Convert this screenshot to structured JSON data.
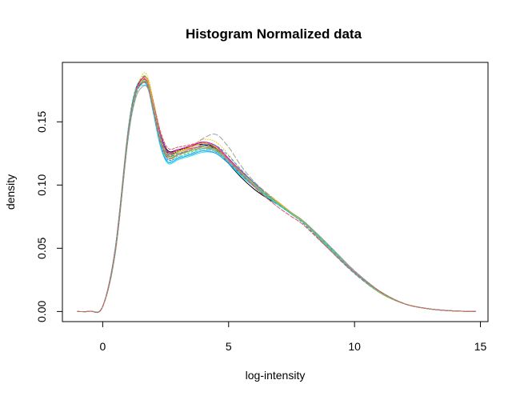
{
  "chart_data": {
    "type": "line",
    "title": "Histogram Normalized data",
    "xlabel": "log-intensity",
    "ylabel": "density",
    "xlim": [
      -1.6,
      15.3
    ],
    "ylim": [
      -0.008,
      0.197
    ],
    "xticks": [
      0,
      5,
      10,
      15
    ],
    "yticks": [
      0.0,
      0.05,
      0.1,
      0.15
    ],
    "xtick_labels": [
      "0",
      "5",
      "10",
      "15"
    ],
    "ytick_labels": [
      "0.00",
      "0.05",
      "0.10",
      "0.15"
    ],
    "grid": false,
    "legend": "none",
    "x": [
      -1.0,
      -0.5,
      0.0,
      0.5,
      1.0,
      1.3,
      1.6,
      1.8,
      2.0,
      2.3,
      2.6,
      3.0,
      3.5,
      4.0,
      4.5,
      5.0,
      5.5,
      6.0,
      6.5,
      7.0,
      7.5,
      8.0,
      9.0,
      10.0,
      11.0,
      12.0,
      13.0,
      14.0,
      14.8
    ],
    "series": [
      {
        "color": "#000000",
        "dash": "",
        "values": [
          0.0,
          0.0002,
          0.004,
          0.048,
          0.14,
          0.172,
          0.181,
          0.178,
          0.164,
          0.138,
          0.125,
          0.127,
          0.131,
          0.132,
          0.128,
          0.117,
          0.106,
          0.097,
          0.09,
          0.084,
          0.077,
          0.07,
          0.051,
          0.032,
          0.016,
          0.006,
          0.002,
          0.0004,
          0.0001
        ]
      },
      {
        "color": "#000000",
        "dash": "",
        "values": [
          0.0,
          0.0002,
          0.004,
          0.05,
          0.141,
          0.175,
          0.184,
          0.18,
          0.166,
          0.14,
          0.127,
          0.128,
          0.13,
          0.133,
          0.129,
          0.12,
          0.108,
          0.1,
          0.092,
          0.085,
          0.078,
          0.071,
          0.052,
          0.032,
          0.016,
          0.006,
          0.002,
          0.0004,
          0.0001
        ]
      },
      {
        "color": "#DF536B",
        "dash": "3,2",
        "values": [
          0.0,
          0.0002,
          0.004,
          0.049,
          0.138,
          0.171,
          0.183,
          0.181,
          0.167,
          0.142,
          0.129,
          0.13,
          0.132,
          0.134,
          0.13,
          0.12,
          0.11,
          0.101,
          0.093,
          0.085,
          0.078,
          0.07,
          0.05,
          0.031,
          0.015,
          0.006,
          0.002,
          0.0004,
          0.0001
        ]
      },
      {
        "color": "#61D04F",
        "dash": "5,3",
        "values": [
          0.0,
          0.0002,
          0.004,
          0.047,
          0.139,
          0.174,
          0.186,
          0.182,
          0.164,
          0.136,
          0.123,
          0.125,
          0.128,
          0.131,
          0.128,
          0.119,
          0.109,
          0.1,
          0.092,
          0.085,
          0.078,
          0.071,
          0.052,
          0.032,
          0.016,
          0.006,
          0.002,
          0.0004,
          0.0001
        ]
      },
      {
        "color": "#2297E6",
        "dash": "2,2",
        "values": [
          0.0,
          0.0002,
          0.004,
          0.048,
          0.137,
          0.172,
          0.182,
          0.179,
          0.161,
          0.133,
          0.12,
          0.122,
          0.125,
          0.128,
          0.126,
          0.118,
          0.108,
          0.099,
          0.091,
          0.084,
          0.077,
          0.07,
          0.051,
          0.032,
          0.016,
          0.006,
          0.002,
          0.0004,
          0.0001
        ]
      },
      {
        "color": "#28E2E5",
        "dash": "",
        "values": [
          0.0,
          0.0002,
          0.004,
          0.05,
          0.142,
          0.173,
          0.179,
          0.176,
          0.158,
          0.13,
          0.117,
          0.12,
          0.123,
          0.126,
          0.125,
          0.117,
          0.107,
          0.099,
          0.091,
          0.084,
          0.077,
          0.07,
          0.051,
          0.032,
          0.016,
          0.006,
          0.002,
          0.0004,
          0.0001
        ]
      },
      {
        "color": "#CD0BBC",
        "dash": "4,2",
        "values": [
          0.0,
          0.0002,
          0.004,
          0.049,
          0.14,
          0.174,
          0.184,
          0.18,
          0.165,
          0.139,
          0.126,
          0.128,
          0.131,
          0.133,
          0.13,
          0.121,
          0.11,
          0.101,
          0.093,
          0.086,
          0.078,
          0.07,
          0.05,
          0.031,
          0.015,
          0.006,
          0.002,
          0.0004,
          0.0001
        ]
      },
      {
        "color": "#F5C710",
        "dash": "1,2",
        "values": [
          0.0,
          0.0002,
          0.004,
          0.046,
          0.136,
          0.172,
          0.188,
          0.185,
          0.168,
          0.14,
          0.126,
          0.127,
          0.131,
          0.136,
          0.134,
          0.124,
          0.112,
          0.102,
          0.094,
          0.086,
          0.078,
          0.07,
          0.05,
          0.031,
          0.015,
          0.006,
          0.002,
          0.0004,
          0.0001
        ]
      },
      {
        "color": "#9E9E9E",
        "dash": "6,3",
        "values": [
          0.0,
          0.0002,
          0.004,
          0.047,
          0.137,
          0.171,
          0.185,
          0.183,
          0.166,
          0.139,
          0.125,
          0.126,
          0.13,
          0.137,
          0.14,
          0.13,
          0.115,
          0.103,
          0.094,
          0.086,
          0.078,
          0.07,
          0.049,
          0.03,
          0.015,
          0.006,
          0.002,
          0.0004,
          0.0001
        ]
      },
      {
        "color": "#DF536B",
        "dash": "",
        "values": [
          0.0,
          0.0002,
          0.004,
          0.048,
          0.139,
          0.173,
          0.183,
          0.18,
          0.163,
          0.136,
          0.123,
          0.126,
          0.129,
          0.13,
          0.127,
          0.118,
          0.108,
          0.1,
          0.092,
          0.085,
          0.077,
          0.07,
          0.051,
          0.032,
          0.016,
          0.006,
          0.002,
          0.0004,
          0.0001
        ]
      },
      {
        "color": "#61D04F",
        "dash": "2,3",
        "values": [
          0.0,
          0.0002,
          0.004,
          0.05,
          0.143,
          0.176,
          0.182,
          0.177,
          0.16,
          0.134,
          0.121,
          0.123,
          0.126,
          0.129,
          0.127,
          0.119,
          0.109,
          0.1,
          0.092,
          0.085,
          0.078,
          0.071,
          0.052,
          0.032,
          0.016,
          0.006,
          0.002,
          0.0004,
          0.0001
        ]
      },
      {
        "color": "#2297E6",
        "dash": "",
        "values": [
          0.0,
          0.0002,
          0.004,
          0.049,
          0.141,
          0.174,
          0.181,
          0.177,
          0.159,
          0.131,
          0.118,
          0.121,
          0.124,
          0.127,
          0.125,
          0.117,
          0.108,
          0.099,
          0.091,
          0.084,
          0.077,
          0.07,
          0.051,
          0.032,
          0.016,
          0.006,
          0.002,
          0.0004,
          0.0001
        ]
      },
      {
        "color": "#28E2E5",
        "dash": "4,3",
        "values": [
          0.0,
          0.0002,
          0.004,
          0.05,
          0.142,
          0.175,
          0.182,
          0.178,
          0.16,
          0.132,
          0.119,
          0.122,
          0.125,
          0.128,
          0.126,
          0.118,
          0.108,
          0.099,
          0.091,
          0.084,
          0.077,
          0.07,
          0.051,
          0.032,
          0.016,
          0.006,
          0.002,
          0.0004,
          0.0001
        ]
      },
      {
        "color": "#CD0BBC",
        "dash": "",
        "values": [
          0.0,
          0.0002,
          0.004,
          0.048,
          0.139,
          0.173,
          0.185,
          0.182,
          0.166,
          0.139,
          0.126,
          0.128,
          0.131,
          0.134,
          0.131,
          0.121,
          0.111,
          0.102,
          0.093,
          0.086,
          0.078,
          0.07,
          0.05,
          0.031,
          0.015,
          0.006,
          0.002,
          0.0004,
          0.0001
        ]
      },
      {
        "color": "#F5C710",
        "dash": "",
        "values": [
          0.0,
          0.0002,
          0.004,
          0.047,
          0.136,
          0.17,
          0.184,
          0.182,
          0.165,
          0.137,
          0.124,
          0.126,
          0.13,
          0.133,
          0.13,
          0.12,
          0.11,
          0.101,
          0.093,
          0.086,
          0.078,
          0.07,
          0.05,
          0.031,
          0.015,
          0.006,
          0.002,
          0.0004,
          0.0001
        ]
      },
      {
        "color": "#9E9E9E",
        "dash": "",
        "values": [
          0.0,
          0.0002,
          0.004,
          0.046,
          0.135,
          0.168,
          0.178,
          0.176,
          0.16,
          0.134,
          0.122,
          0.124,
          0.127,
          0.129,
          0.127,
          0.119,
          0.109,
          0.1,
          0.092,
          0.085,
          0.078,
          0.071,
          0.052,
          0.032,
          0.016,
          0.006,
          0.002,
          0.0004,
          0.0001
        ]
      },
      {
        "color": "#2297E6",
        "dash": "3,3",
        "values": [
          0.0,
          0.0002,
          0.004,
          0.047,
          0.136,
          0.17,
          0.181,
          0.179,
          0.163,
          0.137,
          0.124,
          0.125,
          0.128,
          0.132,
          0.131,
          0.123,
          0.112,
          0.102,
          0.093,
          0.085,
          0.077,
          0.069,
          0.049,
          0.03,
          0.015,
          0.006,
          0.002,
          0.0004,
          0.0001
        ]
      },
      {
        "color": "#61D04F",
        "dash": "",
        "values": [
          0.0,
          0.0002,
          0.004,
          0.048,
          0.138,
          0.172,
          0.182,
          0.179,
          0.162,
          0.135,
          0.122,
          0.124,
          0.127,
          0.13,
          0.128,
          0.12,
          0.11,
          0.101,
          0.092,
          0.085,
          0.077,
          0.07,
          0.05,
          0.031,
          0.015,
          0.006,
          0.002,
          0.0004,
          0.0001
        ]
      },
      {
        "color": "#DF536B",
        "dash": "5,2",
        "values": [
          0.0,
          0.0002,
          0.004,
          0.049,
          0.14,
          0.173,
          0.181,
          0.178,
          0.161,
          0.134,
          0.121,
          0.124,
          0.128,
          0.131,
          0.129,
          0.12,
          0.109,
          0.099,
          0.09,
          0.082,
          0.075,
          0.068,
          0.049,
          0.031,
          0.016,
          0.006,
          0.002,
          0.0004,
          0.0001
        ]
      }
    ]
  }
}
